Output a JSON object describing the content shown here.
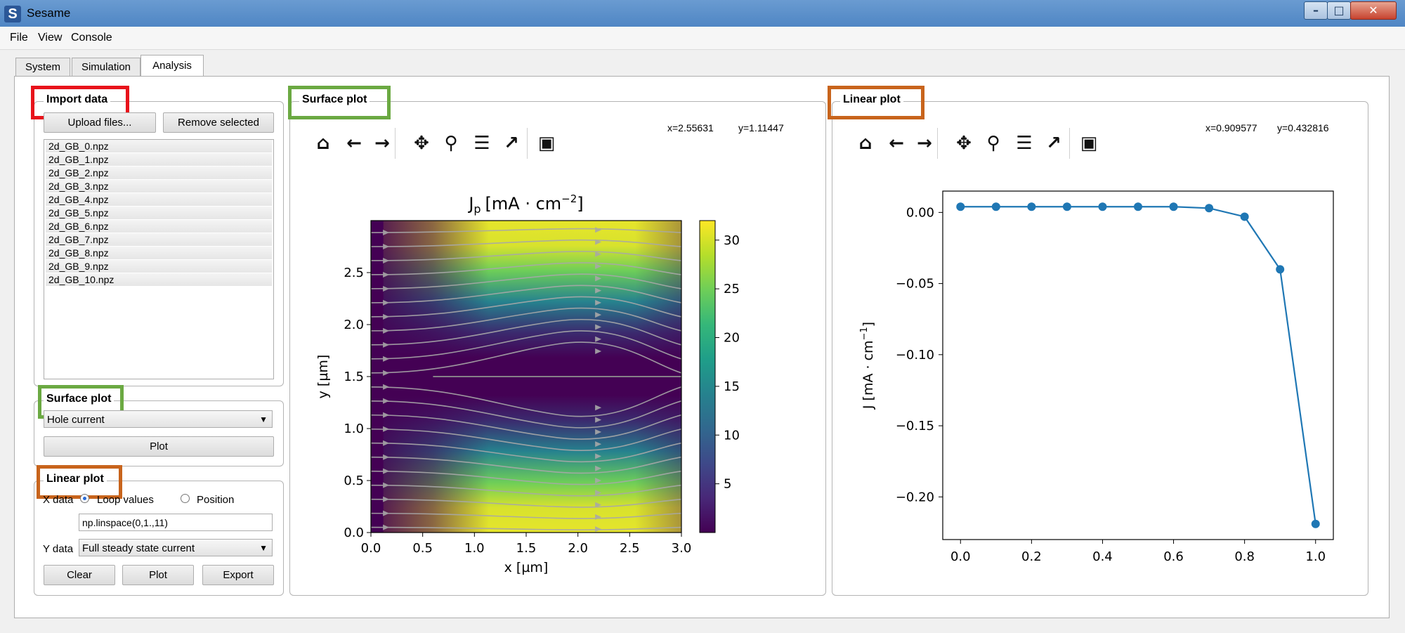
{
  "window": {
    "title": "Sesame",
    "logo": "S"
  },
  "menu": [
    "File",
    "View",
    "Console"
  ],
  "tabs": [
    "System",
    "Simulation",
    "Analysis"
  ],
  "import_data": {
    "label": "Import data",
    "upload_label": "Upload files...",
    "remove_label": "Remove selected",
    "files": [
      "2d_GB_0.npz",
      "2d_GB_1.npz",
      "2d_GB_2.npz",
      "2d_GB_3.npz",
      "2d_GB_4.npz",
      "2d_GB_5.npz",
      "2d_GB_6.npz",
      "2d_GB_7.npz",
      "2d_GB_8.npz",
      "2d_GB_9.npz",
      "2d_GB_10.npz"
    ]
  },
  "surface_controls": {
    "label": "Surface plot",
    "quantity": "Hole current",
    "plot_label": "Plot"
  },
  "linear_controls": {
    "label": "Linear plot",
    "x_label": "X data",
    "loop_label": "Loop values",
    "position_label": "Position",
    "x_expr": "np.linspace(0,1.,11)",
    "y_label": "Y data",
    "y_quantity": "Full steady state current",
    "clear_label": "Clear",
    "plot_label": "Plot",
    "export_label": "Export"
  },
  "surface_panel": {
    "label": "Surface plot",
    "coord_x": "x=2.55631",
    "coord_y": "y=1.11447"
  },
  "linear_panel": {
    "label": "Linear plot",
    "coord_x": "x=0.909577",
    "coord_y": "y=0.432816"
  },
  "toolbar_icons": [
    "home-icon",
    "back-arrow-icon",
    "forward-arrow-icon",
    "pan-icon",
    "zoom-icon",
    "configure-icon",
    "edit-axes-icon",
    "save-icon"
  ],
  "chart_data": [
    {
      "type": "heatmap",
      "title": "J_p [mA · cm^-2]",
      "title_base": "J",
      "title_sub": "p",
      "title_unit": "[mA · cm",
      "title_exp": "−2",
      "title_close": "]",
      "xlabel": "x [µm]",
      "ylabel": "y [µm]",
      "xlim": [
        0.0,
        3.0
      ],
      "ylim": [
        0.0,
        3.0
      ],
      "xticks": [
        "0.0",
        "0.5",
        "1.0",
        "1.5",
        "2.0",
        "2.5",
        "3.0"
      ],
      "yticks": [
        "0.0",
        "0.5",
        "1.0",
        "1.5",
        "2.0",
        "2.5"
      ],
      "colorbar": {
        "range": [
          0,
          32
        ],
        "ticks": [
          "5",
          "10",
          "15",
          "20",
          "25",
          "30"
        ],
        "colormap": "viridis"
      },
      "streamlines": true
    },
    {
      "type": "line",
      "xlabel": "",
      "ylabel": "J [mA · cm^-1]",
      "ylabel_base": "J [mA · cm",
      "ylabel_exp": "−1",
      "ylabel_close": "]",
      "x": [
        0.0,
        0.1,
        0.2,
        0.3,
        0.4,
        0.5,
        0.6,
        0.7,
        0.8,
        0.9,
        1.0
      ],
      "y": [
        0.004,
        0.004,
        0.004,
        0.004,
        0.004,
        0.004,
        0.004,
        0.003,
        -0.003,
        -0.04,
        -0.219
      ],
      "xlim": [
        -0.05,
        1.05
      ],
      "ylim": [
        -0.23,
        0.015
      ],
      "xticks": [
        "0.0",
        "0.2",
        "0.4",
        "0.6",
        "0.8",
        "1.0"
      ],
      "yticks": [
        "0.00",
        "−0.05",
        "−0.10",
        "−0.15",
        "−0.20"
      ],
      "color": "#1f77b4"
    }
  ]
}
